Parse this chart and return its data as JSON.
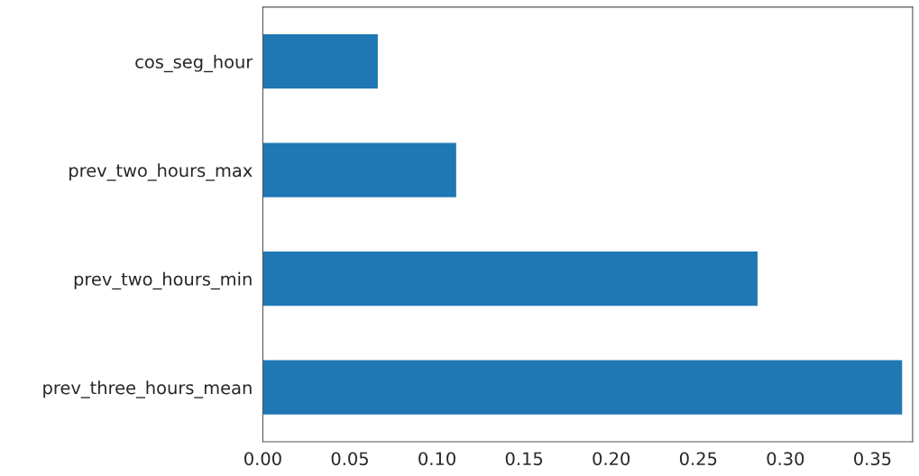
{
  "chart_data": {
    "type": "bar",
    "orientation": "horizontal",
    "categories": [
      "cos_seg_hour",
      "prev_two_hours_max",
      "prev_two_hours_min",
      "prev_three_hours_mean"
    ],
    "values": [
      0.066,
      0.111,
      0.284,
      0.367
    ],
    "color": "#1f77b4",
    "xlim": [
      0,
      0.373
    ],
    "xticks": [
      {
        "value": 0,
        "label": "0.00"
      },
      0.05,
      {
        "value": 0.1,
        "label": "0.10"
      },
      0.15,
      {
        "value": 0.2,
        "label": "0.20"
      },
      0.25,
      {
        "value": 0.3,
        "label": "0.30"
      },
      0.35
    ],
    "grid": false,
    "legend": false
  }
}
